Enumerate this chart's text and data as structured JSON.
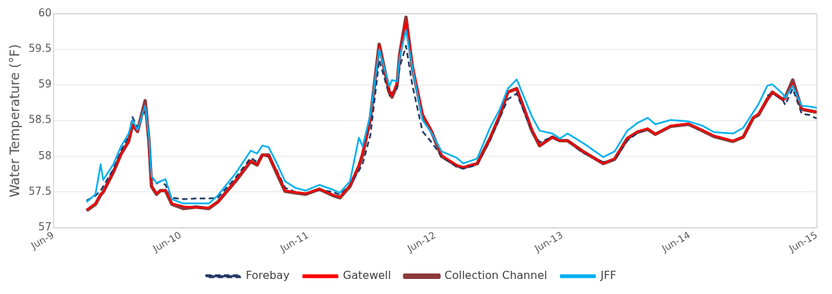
{
  "chart_data": {
    "type": "line",
    "ylabel": "Water Temperature (°F)",
    "x": [
      "--06-09T06:14",
      "--06-09T07:55",
      "--06-09T08:53",
      "--06-09T09:22",
      "--06-09T11:17",
      "--06-09T12:43",
      "--06-09T14:10",
      "--06-09T14:53",
      "--06-09T15:50",
      "--06-09T17:17",
      "--06-09T18:00",
      "--06-09T18:29",
      "--06-09T19:26",
      "--06-09T20:10",
      "--06-09T21:07",
      "--06-09T22:19",
      "--06-10T00:29",
      "--06-10T02:53",
      "--06-10T05:17",
      "--06-10T06:58",
      "--06-10T10:19",
      "--06-10T13:12",
      "--06-10T14:24",
      "--06-10T15:22",
      "--06-10T16:34",
      "--06-10T18:00",
      "--06-10T19:41",
      "--06-10T21:36",
      "--06-10T23:31",
      "--06-11T02:10",
      "--06-11T04:48",
      "--06-11T06:00",
      "--06-11T07:55",
      "--06-11T09:36",
      "--06-11T10:19",
      "--06-11T11:46",
      "--06-11T13:26",
      "--06-11T15:22",
      "--06-11T15:50",
      "--06-11T16:48",
      "--06-11T17:17",
      "--06-11T18:29",
      "--06-11T19:41",
      "--06-11T21:36",
      "--06-11T23:17",
      "--06-12T01:12",
      "--06-12T04:05",
      "--06-12T05:17",
      "--06-12T07:55",
      "--06-12T10:19",
      "--06-12T12:14",
      "--06-12T13:41",
      "--06-12T15:22",
      "--06-12T18:14",
      "--06-12T19:41",
      "--06-12T22:05",
      "--06-12T23:31",
      "--06-13T00:58",
      "--06-13T03:50",
      "--06-13T07:41",
      "--06-13T09:50",
      "--06-13T12:14",
      "--06-13T14:10",
      "--06-13T16:05",
      "--06-13T17:31",
      "--06-13T20:24",
      "--06-13T23:46",
      "--06-14T02:24",
      "--06-14T04:34",
      "--06-14T08:10",
      "--06-14T10:05",
      "--06-14T12:00",
      "--06-14T12:58",
      "--06-14T14:38",
      "--06-14T15:36",
      "--06-14T17:31",
      "--06-14T18:00",
      "--06-14T19:26",
      "--06-14T21:07",
      "--06-14T22:34",
      "--06-15T00:00"
    ],
    "xlim": [
      "--06-09",
      "--06-15"
    ],
    "xticks": [
      {
        "value": "--06-09",
        "label": "Jun-9"
      },
      {
        "value": "--06-10",
        "label": "Jun-10"
      },
      {
        "value": "--06-11",
        "label": "Jun-11"
      },
      {
        "value": "--06-12",
        "label": "Jun-12"
      },
      {
        "value": "--06-13",
        "label": "Jun-13"
      },
      {
        "value": "--06-14",
        "label": "Jun-14"
      },
      {
        "value": "--06-15",
        "label": "Jun-15"
      }
    ],
    "ylim": [
      57,
      60
    ],
    "yticks": [
      57,
      57.5,
      58,
      58.5,
      59,
      59.5,
      60
    ],
    "grid": "y",
    "legend": "bottom",
    "marker": "none",
    "series": [
      {
        "name": "Forebay",
        "color": "#203864",
        "line_style": "dashed",
        "values": [
          57.38,
          57.45,
          57.52,
          57.58,
          57.82,
          58.08,
          58.28,
          58.55,
          58.4,
          58.65,
          58.3,
          57.72,
          57.62,
          57.65,
          57.6,
          57.42,
          57.4,
          57.41,
          57.41,
          57.42,
          57.7,
          57.98,
          57.92,
          58.0,
          58.0,
          57.82,
          57.56,
          57.5,
          57.48,
          57.53,
          57.5,
          57.46,
          57.6,
          57.8,
          57.9,
          58.3,
          59.35,
          58.85,
          58.9,
          58.95,
          59.25,
          59.55,
          59.0,
          58.35,
          58.2,
          58.0,
          57.85,
          57.83,
          57.88,
          58.22,
          58.55,
          58.8,
          58.88,
          58.35,
          58.2,
          58.27,
          58.22,
          58.22,
          58.05,
          57.92,
          57.95,
          58.22,
          58.33,
          58.4,
          null,
          null,
          null,
          null,
          null,
          null,
          null,
          null,
          null,
          58.85,
          58.88,
          58.8,
          58.72,
          58.95,
          58.6,
          58.58,
          58.53
        ]
      },
      {
        "name": "Gatewell",
        "color": "#ff0000",
        "line_style": "solid",
        "values": [
          57.25,
          57.34,
          57.47,
          57.5,
          57.78,
          58.03,
          58.21,
          58.44,
          58.35,
          58.72,
          58.21,
          57.58,
          57.48,
          57.52,
          57.52,
          57.34,
          57.3,
          57.28,
          57.28,
          57.36,
          57.66,
          57.94,
          57.88,
          58.02,
          58.01,
          57.8,
          57.52,
          57.5,
          57.48,
          57.54,
          57.46,
          57.43,
          57.6,
          57.88,
          58.05,
          58.54,
          59.55,
          58.9,
          58.85,
          59.05,
          59.45,
          59.9,
          59.3,
          58.6,
          58.37,
          58.02,
          57.87,
          57.85,
          57.9,
          58.25,
          58.6,
          58.9,
          58.95,
          58.38,
          58.15,
          58.27,
          58.22,
          58.22,
          58.07,
          57.9,
          57.97,
          58.26,
          58.35,
          58.39,
          58.31,
          58.43,
          58.46,
          58.37,
          58.29,
          58.22,
          58.27,
          58.55,
          58.6,
          58.8,
          58.9,
          58.8,
          58.8,
          59.02,
          58.67,
          58.64,
          58.62
        ]
      },
      {
        "name": "Collection Channel",
        "color": "#8b3a3a",
        "line_style": "solid",
        "values": [
          57.24,
          57.33,
          57.46,
          57.5,
          57.78,
          58.03,
          58.21,
          58.44,
          58.35,
          58.78,
          58.21,
          57.58,
          57.47,
          57.52,
          57.52,
          57.33,
          57.27,
          57.29,
          57.27,
          57.36,
          57.65,
          57.93,
          57.88,
          58.02,
          58.02,
          57.78,
          57.51,
          57.49,
          57.47,
          57.54,
          57.45,
          57.42,
          57.58,
          57.86,
          58.03,
          58.53,
          59.57,
          58.89,
          58.83,
          59.0,
          59.42,
          59.95,
          59.25,
          58.57,
          58.35,
          58.0,
          57.87,
          57.84,
          57.9,
          58.25,
          58.58,
          58.9,
          58.95,
          58.36,
          58.15,
          58.27,
          58.22,
          58.22,
          58.07,
          57.9,
          57.96,
          58.25,
          58.34,
          58.38,
          58.31,
          58.42,
          58.45,
          58.36,
          58.28,
          58.21,
          58.27,
          58.54,
          58.58,
          58.8,
          58.9,
          58.8,
          58.82,
          59.07,
          58.66,
          58.64,
          58.62
        ]
      },
      {
        "name": "JFF",
        "color": "#00b0f0",
        "line_style": "solid",
        "values": [
          57.36,
          57.47,
          57.89,
          57.67,
          57.89,
          58.14,
          58.32,
          58.51,
          58.37,
          58.71,
          58.28,
          57.72,
          57.63,
          57.65,
          57.68,
          57.4,
          57.34,
          57.34,
          57.34,
          57.45,
          57.76,
          58.08,
          58.04,
          58.15,
          58.13,
          57.92,
          57.65,
          57.56,
          57.52,
          57.6,
          57.53,
          57.49,
          57.65,
          58.26,
          58.14,
          58.59,
          59.5,
          58.98,
          59.07,
          59.05,
          59.39,
          59.77,
          59.25,
          58.51,
          58.33,
          58.07,
          57.98,
          57.9,
          57.97,
          58.4,
          58.67,
          58.95,
          59.08,
          58.56,
          58.36,
          58.32,
          58.25,
          58.32,
          58.19,
          57.99,
          58.07,
          58.36,
          58.47,
          58.54,
          58.45,
          58.51,
          58.49,
          58.43,
          58.34,
          58.32,
          58.4,
          58.62,
          58.73,
          58.99,
          59.01,
          58.88,
          58.82,
          58.99,
          58.71,
          58.7,
          58.68
        ]
      }
    ]
  }
}
